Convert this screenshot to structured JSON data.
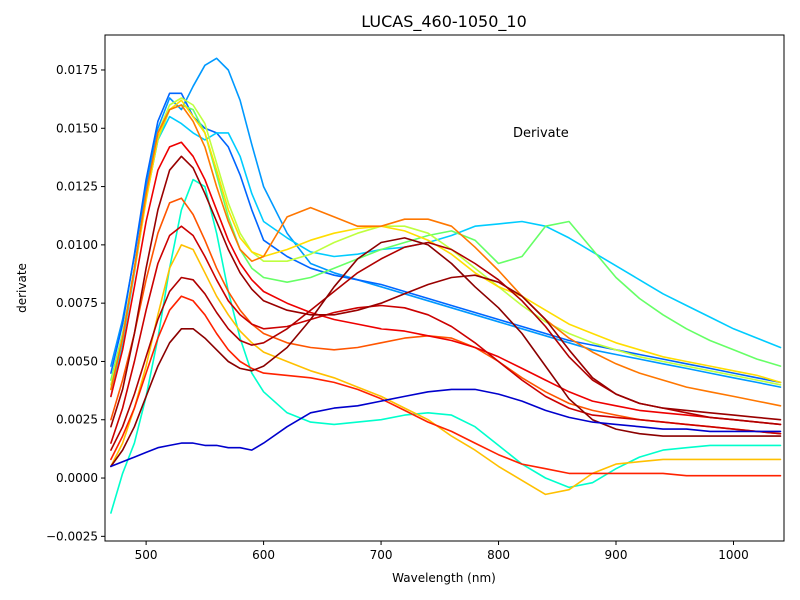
{
  "chart_data": {
    "type": "line",
    "title": "LUCAS_460-1050_10",
    "annotation": "Derivate",
    "xlabel": "Wavelength (nm)",
    "ylabel": "derivate",
    "xlim": [
      465,
      1043
    ],
    "ylim": [
      -0.0027,
      0.019
    ],
    "x_ticks": [
      500,
      600,
      700,
      800,
      900,
      1000
    ],
    "y_ticks": [
      -0.0025,
      0.0,
      0.0025,
      0.005,
      0.0075,
      0.01,
      0.0125,
      0.015,
      0.0175
    ],
    "x_tick_labels": [
      "500",
      "600",
      "700",
      "800",
      "900",
      "1000"
    ],
    "y_tick_labels": [
      "−0.0025",
      "0.0000",
      "0.0025",
      "0.0050",
      "0.0075",
      "0.0100",
      "0.0125",
      "0.0150",
      "0.0175"
    ],
    "grid": false,
    "legend": "none",
    "colormap": "jet",
    "colors": {
      "dark_red": "#8b0000",
      "red": "#e60000",
      "orange": "#ff8000",
      "yellow": "#f5e000",
      "green": "#66ff66",
      "cyan": "#00c8ff",
      "blue": "#0066ff",
      "dark_blue": "#0000cc"
    },
    "x": [
      470,
      480,
      490,
      500,
      510,
      520,
      530,
      540,
      550,
      560,
      570,
      580,
      590,
      600,
      620,
      640,
      660,
      680,
      700,
      720,
      740,
      760,
      780,
      800,
      820,
      840,
      860,
      880,
      900,
      920,
      940,
      960,
      980,
      1000,
      1020,
      1040
    ],
    "series": [
      {
        "color": "#0099ff",
        "values": [
          0.0048,
          0.0068,
          0.0095,
          0.0125,
          0.015,
          0.0163,
          0.0158,
          0.0168,
          0.0177,
          0.018,
          0.0175,
          0.0162,
          0.0143,
          0.0125,
          0.0105,
          0.0092,
          0.0088,
          0.0085,
          0.0082,
          0.0079,
          0.0076,
          0.0073,
          0.007,
          0.0067,
          0.0064,
          0.0061,
          0.0058,
          0.0055,
          0.0053,
          0.0051,
          0.0049,
          0.0047,
          0.0045,
          0.0043,
          0.0041,
          0.0039
        ]
      },
      {
        "color": "#0066ff",
        "values": [
          0.0045,
          0.0066,
          0.0096,
          0.0128,
          0.0153,
          0.0165,
          0.0165,
          0.0155,
          0.015,
          0.0148,
          0.0142,
          0.013,
          0.0115,
          0.0102,
          0.0095,
          0.009,
          0.0087,
          0.0085,
          0.0083,
          0.008,
          0.0077,
          0.0074,
          0.0071,
          0.0068,
          0.0065,
          0.0062,
          0.0059,
          0.0057,
          0.0055,
          0.0053,
          0.0051,
          0.0049,
          0.0047,
          0.0045,
          0.0043,
          0.0041
        ]
      },
      {
        "color": "#00ccff",
        "values": [
          0.0035,
          0.0058,
          0.0088,
          0.012,
          0.0145,
          0.0155,
          0.0152,
          0.0148,
          0.0145,
          0.0148,
          0.0148,
          0.0138,
          0.0122,
          0.011,
          0.0103,
          0.0097,
          0.0095,
          0.0096,
          0.0098,
          0.0099,
          0.0101,
          0.0104,
          0.0108,
          0.0109,
          0.011,
          0.0108,
          0.0103,
          0.0097,
          0.0091,
          0.0085,
          0.0079,
          0.0074,
          0.0069,
          0.0064,
          0.006,
          0.0056
        ]
      },
      {
        "color": "#00ffcc",
        "values": [
          -0.0015,
          0.0002,
          0.0015,
          0.0035,
          0.006,
          0.009,
          0.0115,
          0.0128,
          0.0125,
          0.0105,
          0.008,
          0.006,
          0.0045,
          0.0037,
          0.0028,
          0.0024,
          0.0023,
          0.0024,
          0.0025,
          0.0027,
          0.0028,
          0.0027,
          0.0022,
          0.0014,
          0.0006,
          0.0,
          -0.0004,
          -0.0002,
          0.0004,
          0.0009,
          0.0012,
          0.0013,
          0.0014,
          0.0014,
          0.0014,
          0.0014
        ]
      },
      {
        "color": "#66ff66",
        "values": [
          0.0042,
          0.0062,
          0.009,
          0.012,
          0.0145,
          0.0158,
          0.016,
          0.0158,
          0.0148,
          0.013,
          0.0112,
          0.0098,
          0.009,
          0.0086,
          0.0084,
          0.0086,
          0.009,
          0.0094,
          0.0098,
          0.0101,
          0.0104,
          0.0106,
          0.0102,
          0.0092,
          0.0095,
          0.0108,
          0.011,
          0.0098,
          0.0086,
          0.0077,
          0.007,
          0.0064,
          0.0059,
          0.0055,
          0.0051,
          0.0048
        ]
      },
      {
        "color": "#bfff40",
        "values": [
          0.004,
          0.0061,
          0.009,
          0.012,
          0.0148,
          0.016,
          0.0163,
          0.016,
          0.0152,
          0.0135,
          0.0118,
          0.0105,
          0.0097,
          0.0093,
          0.0093,
          0.0096,
          0.0101,
          0.0105,
          0.0108,
          0.0108,
          0.0105,
          0.0098,
          0.009,
          0.0082,
          0.0074,
          0.0067,
          0.0062,
          0.0058,
          0.0055,
          0.0052,
          0.005,
          0.0048,
          0.0046,
          0.0044,
          0.0042,
          0.004
        ]
      },
      {
        "color": "#ffdd00",
        "values": [
          0.0038,
          0.006,
          0.0089,
          0.0119,
          0.0146,
          0.0158,
          0.0162,
          0.0155,
          0.0148,
          0.0132,
          0.0115,
          0.0103,
          0.0097,
          0.0095,
          0.0098,
          0.0102,
          0.0105,
          0.0107,
          0.0108,
          0.0106,
          0.0102,
          0.0096,
          0.0088,
          0.0082,
          0.0078,
          0.0072,
          0.0066,
          0.0062,
          0.0058,
          0.0055,
          0.0052,
          0.005,
          0.0048,
          0.0046,
          0.0044,
          0.0041
        ]
      },
      {
        "color": "#ffc000",
        "values": [
          0.0005,
          0.0015,
          0.003,
          0.0048,
          0.007,
          0.009,
          0.01,
          0.0098,
          0.0088,
          0.0078,
          0.007,
          0.0063,
          0.0058,
          0.0054,
          0.005,
          0.0046,
          0.0043,
          0.0039,
          0.0035,
          0.003,
          0.0025,
          0.0018,
          0.0012,
          0.0005,
          -0.0001,
          -0.0007,
          -0.0005,
          0.0002,
          0.0006,
          0.0007,
          0.0008,
          0.0008,
          0.0008,
          0.0008,
          0.0008,
          0.0008
        ]
      },
      {
        "color": "#ff7700",
        "values": [
          0.0038,
          0.006,
          0.009,
          0.0122,
          0.0148,
          0.0158,
          0.016,
          0.0153,
          0.0142,
          0.0125,
          0.011,
          0.0098,
          0.0093,
          0.0095,
          0.0112,
          0.0116,
          0.0112,
          0.0108,
          0.0108,
          0.0111,
          0.0111,
          0.0108,
          0.0099,
          0.0089,
          0.0078,
          0.0068,
          0.006,
          0.0054,
          0.0049,
          0.0045,
          0.0042,
          0.0039,
          0.0037,
          0.0035,
          0.0033,
          0.0031
        ]
      },
      {
        "color": "#ff5500",
        "values": [
          0.0025,
          0.0042,
          0.0062,
          0.0085,
          0.0105,
          0.0118,
          0.012,
          0.0113,
          0.0102,
          0.009,
          0.008,
          0.0072,
          0.0066,
          0.0062,
          0.0058,
          0.0056,
          0.0055,
          0.0056,
          0.0058,
          0.006,
          0.0061,
          0.006,
          0.0056,
          0.005,
          0.0043,
          0.0037,
          0.0032,
          0.0029,
          0.0027,
          0.0025,
          0.0024,
          0.0023,
          0.0022,
          0.0021,
          0.002,
          0.0019
        ]
      },
      {
        "color": "#ff2200",
        "values": [
          0.0008,
          0.0018,
          0.003,
          0.0045,
          0.006,
          0.0072,
          0.0078,
          0.0076,
          0.007,
          0.0062,
          0.0055,
          0.005,
          0.0047,
          0.0045,
          0.0044,
          0.0043,
          0.0041,
          0.0038,
          0.0034,
          0.0029,
          0.0024,
          0.002,
          0.0015,
          0.001,
          0.0006,
          0.0004,
          0.0002,
          0.0002,
          0.0002,
          0.0002,
          0.0002,
          0.0001,
          0.0001,
          0.0001,
          0.0001,
          0.0001
        ]
      },
      {
        "color": "#ee0000",
        "values": [
          0.0035,
          0.0055,
          0.0082,
          0.011,
          0.0132,
          0.0142,
          0.0144,
          0.0138,
          0.0128,
          0.0115,
          0.0102,
          0.0092,
          0.0085,
          0.008,
          0.0075,
          0.0071,
          0.0068,
          0.0066,
          0.0064,
          0.0063,
          0.0061,
          0.0059,
          0.0056,
          0.0052,
          0.0047,
          0.0042,
          0.0037,
          0.0033,
          0.0031,
          0.0029,
          0.0028,
          0.0027,
          0.0026,
          0.0025,
          0.0024,
          0.0023
        ]
      },
      {
        "color": "#cc0000",
        "values": [
          0.0015,
          0.003,
          0.005,
          0.0072,
          0.0092,
          0.0104,
          0.0108,
          0.0104,
          0.0095,
          0.0085,
          0.0076,
          0.007,
          0.0066,
          0.0064,
          0.0065,
          0.0068,
          0.0071,
          0.0073,
          0.0074,
          0.0073,
          0.007,
          0.0065,
          0.0058,
          0.005,
          0.0042,
          0.0035,
          0.003,
          0.0027,
          0.0026,
          0.0025,
          0.0024,
          0.0023,
          0.0022,
          0.0021,
          0.002,
          0.0019
        ]
      },
      {
        "color": "#b00000",
        "values": [
          0.0012,
          0.0022,
          0.0036,
          0.0052,
          0.0068,
          0.008,
          0.0086,
          0.0085,
          0.0079,
          0.0071,
          0.0064,
          0.0059,
          0.0057,
          0.0058,
          0.0064,
          0.0072,
          0.008,
          0.0088,
          0.0094,
          0.0099,
          0.0101,
          0.0098,
          0.0092,
          0.0085,
          0.0076,
          0.0065,
          0.0052,
          0.0042,
          0.0036,
          0.0032,
          0.003,
          0.0028,
          0.0026,
          0.0025,
          0.0024,
          0.0023
        ]
      },
      {
        "color": "#990000",
        "values": [
          0.0022,
          0.0038,
          0.0062,
          0.009,
          0.0115,
          0.0132,
          0.0138,
          0.0133,
          0.0122,
          0.011,
          0.0098,
          0.0088,
          0.0081,
          0.0076,
          0.0072,
          0.007,
          0.007,
          0.0072,
          0.0075,
          0.0079,
          0.0083,
          0.0086,
          0.0087,
          0.0084,
          0.0078,
          0.0068,
          0.0055,
          0.0043,
          0.0036,
          0.0032,
          0.003,
          0.0029,
          0.0028,
          0.0027,
          0.0026,
          0.0025
        ]
      },
      {
        "color": "#8b0000",
        "values": [
          0.0005,
          0.0012,
          0.0022,
          0.0035,
          0.0048,
          0.0058,
          0.0064,
          0.0064,
          0.006,
          0.0055,
          0.005,
          0.0047,
          0.0046,
          0.0048,
          0.0056,
          0.0068,
          0.0082,
          0.0094,
          0.0101,
          0.0103,
          0.01,
          0.0092,
          0.0082,
          0.0073,
          0.0062,
          0.0048,
          0.0034,
          0.0025,
          0.0021,
          0.0019,
          0.0018,
          0.0018,
          0.0018,
          0.0018,
          0.0018,
          0.0018
        ]
      },
      {
        "color": "#0000cc",
        "values": [
          0.0005,
          0.0007,
          0.0009,
          0.0011,
          0.0013,
          0.0014,
          0.0015,
          0.0015,
          0.0014,
          0.0014,
          0.0013,
          0.0013,
          0.0012,
          0.0015,
          0.0022,
          0.0028,
          0.003,
          0.0031,
          0.0033,
          0.0035,
          0.0037,
          0.0038,
          0.0038,
          0.0036,
          0.0033,
          0.0029,
          0.0026,
          0.0024,
          0.0023,
          0.0022,
          0.0021,
          0.0021,
          0.002,
          0.002,
          0.002,
          0.002
        ]
      }
    ]
  }
}
